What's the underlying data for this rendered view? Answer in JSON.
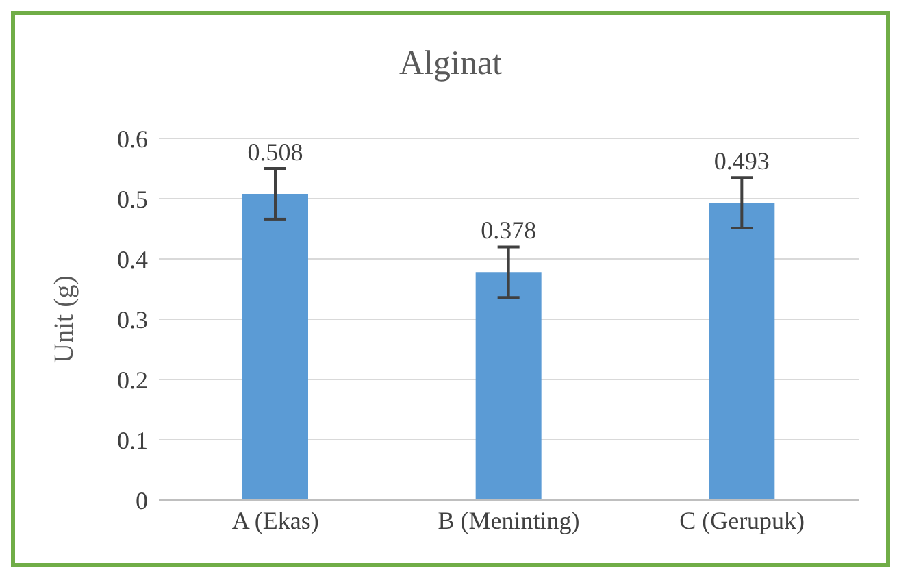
{
  "chart_data": {
    "type": "bar",
    "title": "Alginat",
    "ylabel": "Unit (g)",
    "categories": [
      "A (Ekas)",
      "B (Meninting)",
      "C (Gerupuk)"
    ],
    "values": [
      0.508,
      0.378,
      0.493
    ],
    "errors": [
      0.042,
      0.042,
      0.042
    ],
    "color": "#5b9bd5",
    "ylim": [
      0,
      0.6
    ],
    "yticks": [
      0,
      0.1,
      0.2,
      0.3,
      0.4,
      0.5,
      0.6
    ],
    "grid": "y",
    "data_labels": true,
    "legend": false
  }
}
